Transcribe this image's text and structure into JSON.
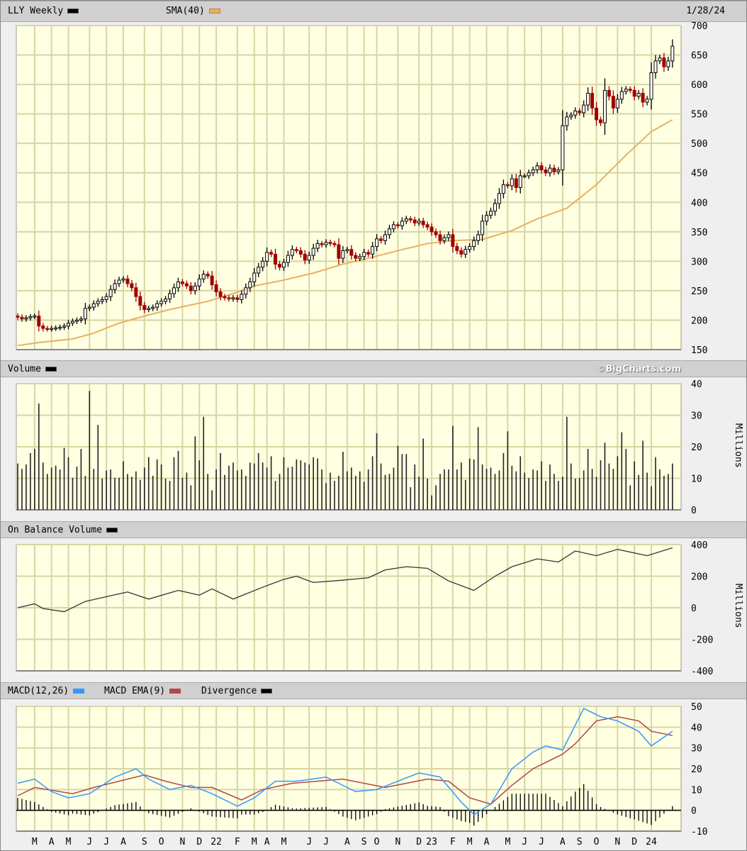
{
  "header": {
    "symbol_label": "LLY Weekly",
    "sma_label": "SMA(40)",
    "date": "1/28/24"
  },
  "volume_header": {
    "label": "Volume",
    "brand": "©BigCharts.com"
  },
  "obv_header": {
    "label": "On Balance Volume"
  },
  "macd_header": {
    "macd_label": "MACD(12,26)",
    "ema_label": "MACD EMA(9)",
    "div_label": "Divergence"
  },
  "units": {
    "volume": "Millions",
    "obv": "Millions"
  },
  "colors": {
    "up": "#000000",
    "down": "#a00000",
    "sma": "#e8b060",
    "macd": "#3399ff",
    "signal": "#b04848",
    "divergence": "#000000",
    "plot_bg": "#ffffe2",
    "grid": "#d6d6a4"
  },
  "chart_data": [
    {
      "type": "candlestick",
      "title": "LLY Weekly",
      "ylim": [
        150,
        700
      ],
      "yticks": [
        150,
        200,
        250,
        300,
        350,
        400,
        450,
        500,
        550,
        600,
        650,
        700
      ],
      "x_ticks": [
        {
          "label": "M",
          "week": 4
        },
        {
          "label": "A",
          "week": 8
        },
        {
          "label": "M",
          "week": 12
        },
        {
          "label": "J",
          "week": 17
        },
        {
          "label": "J",
          "week": 21
        },
        {
          "label": "A",
          "week": 25
        },
        {
          "label": "S",
          "week": 30
        },
        {
          "label": "O",
          "week": 34
        },
        {
          "label": "N",
          "week": 39
        },
        {
          "label": "D",
          "week": 43
        },
        {
          "label": "22",
          "week": 47
        },
        {
          "label": "F",
          "week": 52
        },
        {
          "label": "M",
          "week": 56
        },
        {
          "label": "A",
          "week": 59
        },
        {
          "label": "M",
          "week": 63
        },
        {
          "label": "J",
          "week": 69
        },
        {
          "label": "J",
          "week": 73
        },
        {
          "label": "A",
          "week": 78
        },
        {
          "label": "S",
          "week": 82
        },
        {
          "label": "O",
          "week": 85
        },
        {
          "label": "N",
          "week": 90
        },
        {
          "label": "D",
          "week": 95
        },
        {
          "label": "23",
          "week": 98
        },
        {
          "label": "F",
          "week": 103
        },
        {
          "label": "M",
          "week": 107
        },
        {
          "label": "A",
          "week": 111
        },
        {
          "label": "M",
          "week": 116
        },
        {
          "label": "J",
          "week": 120
        },
        {
          "label": "J",
          "week": 124
        },
        {
          "label": "A",
          "week": 129
        },
        {
          "label": "S",
          "week": 133
        },
        {
          "label": "O",
          "week": 137
        },
        {
          "label": "N",
          "week": 142
        },
        {
          "label": "D",
          "week": 146
        },
        {
          "label": "24",
          "week": 150
        }
      ],
      "close": [
        205,
        202,
        204,
        206,
        207,
        190,
        186,
        185,
        186,
        187,
        188,
        190,
        195,
        198,
        200,
        202,
        220,
        222,
        228,
        232,
        235,
        240,
        252,
        262,
        268,
        270,
        262,
        255,
        240,
        225,
        218,
        220,
        222,
        228,
        232,
        236,
        245,
        255,
        265,
        262,
        258,
        250,
        258,
        270,
        278,
        275,
        260,
        248,
        240,
        238,
        236,
        238,
        235,
        244,
        255,
        265,
        280,
        290,
        300,
        315,
        312,
        295,
        290,
        298,
        310,
        320,
        318,
        312,
        302,
        310,
        322,
        330,
        328,
        332,
        330,
        328,
        305,
        318,
        320,
        310,
        305,
        308,
        315,
        312,
        325,
        338,
        335,
        345,
        355,
        362,
        360,
        368,
        372,
        370,
        365,
        368,
        362,
        358,
        350,
        345,
        335,
        340,
        345,
        325,
        318,
        312,
        320,
        325,
        335,
        345,
        368,
        378,
        385,
        398,
        415,
        430,
        428,
        440,
        425,
        445,
        445,
        450,
        455,
        462,
        455,
        450,
        458,
        452,
        455,
        530,
        545,
        548,
        555,
        552,
        565,
        585,
        560,
        540,
        535,
        590,
        580,
        560,
        575,
        588,
        592,
        590,
        580,
        585,
        570,
        575,
        620,
        640,
        645,
        630,
        640,
        665
      ],
      "sma40": [
        {
          "week": 0,
          "value": 157
        },
        {
          "week": 6,
          "value": 163
        },
        {
          "week": 13,
          "value": 168
        },
        {
          "week": 18,
          "value": 178
        },
        {
          "week": 24,
          "value": 195
        },
        {
          "week": 30,
          "value": 207
        },
        {
          "week": 36,
          "value": 218
        },
        {
          "week": 45,
          "value": 232
        },
        {
          "week": 51,
          "value": 245
        },
        {
          "week": 56,
          "value": 258
        },
        {
          "week": 63,
          "value": 268
        },
        {
          "week": 70,
          "value": 280
        },
        {
          "week": 77,
          "value": 295
        },
        {
          "week": 83,
          "value": 305
        },
        {
          "week": 90,
          "value": 318
        },
        {
          "week": 97,
          "value": 330
        },
        {
          "week": 103,
          "value": 335
        },
        {
          "week": 110,
          "value": 337
        },
        {
          "week": 117,
          "value": 352
        },
        {
          "week": 123,
          "value": 372
        },
        {
          "week": 130,
          "value": 390
        },
        {
          "week": 137,
          "value": 430
        },
        {
          "week": 144,
          "value": 480
        },
        {
          "week": 150,
          "value": 520
        },
        {
          "week": 155,
          "value": 540
        }
      ]
    },
    {
      "type": "bar",
      "title": "Volume",
      "ylabel": "Millions",
      "ylim": [
        0,
        40
      ],
      "yticks": [
        0,
        10,
        20,
        30,
        40
      ],
      "values": [
        14.7,
        13,
        14.4,
        18,
        19.3,
        33.7,
        15,
        11.4,
        13.4,
        14,
        12.8,
        19.6,
        16.7,
        10.2,
        13.7,
        19.3,
        10.8,
        37.7,
        13,
        26.9,
        9.9,
        12.5,
        12.8,
        10.2,
        10.2,
        15.4,
        11.4,
        10.5,
        12.2,
        9.5,
        13.4,
        16.7,
        10.8,
        16,
        14.4,
        9.9,
        9.2,
        16.7,
        18.7,
        10.2,
        11.8,
        7.8,
        23.3,
        15.7,
        29.5,
        11.4,
        6.2,
        12.8,
        18,
        11.1,
        14,
        15,
        12.5,
        12.8,
        10.8,
        15,
        14.7,
        18,
        15,
        13.4,
        17,
        9.2,
        11.4,
        16.7,
        13.4,
        13.7,
        16,
        15.7,
        15,
        14.4,
        16.7,
        16.3,
        12.8,
        8.5,
        11.8,
        9.2,
        10.8,
        18.4,
        12.2,
        13.4,
        10.8,
        12.2,
        8.9,
        12.8,
        17,
        24.3,
        14.7,
        11.1,
        11.4,
        13.4,
        20.3,
        17.7,
        17.7,
        7.2,
        14.4,
        10.5,
        22.6,
        9.9,
        4.6,
        7.8,
        11.4,
        12.8,
        12.8,
        26.6,
        12.8,
        15,
        9.5,
        16.3,
        16,
        26.2,
        14.4,
        13,
        13.4,
        11.4,
        12.5,
        18,
        24.9,
        14,
        12.2,
        17,
        11.8,
        10.1,
        12.8,
        12.5,
        15.4,
        9.2,
        14.4,
        11.4,
        9.2,
        10.5,
        29.5,
        14.7,
        9.9,
        10.1,
        12.5,
        19.3,
        13,
        10.5,
        15.7,
        21.3,
        14.7,
        13,
        17,
        24.6,
        19.3,
        7.8,
        15.4,
        11.1,
        21.9,
        11.8,
        7.5,
        16.7,
        12.8,
        10.8,
        11.4,
        14.7
      ]
    },
    {
      "type": "line",
      "title": "On Balance Volume",
      "ylabel": "Millions",
      "ylim": [
        -400,
        400
      ],
      "yticks": [
        -400,
        -200,
        0,
        200,
        400
      ],
      "points": [
        {
          "week": 0,
          "value": 0
        },
        {
          "week": 4,
          "value": 25
        },
        {
          "week": 6,
          "value": -5
        },
        {
          "week": 11,
          "value": -25
        },
        {
          "week": 16,
          "value": 40
        },
        {
          "week": 21,
          "value": 70
        },
        {
          "week": 26,
          "value": 100
        },
        {
          "week": 31,
          "value": 55
        },
        {
          "week": 38,
          "value": 110
        },
        {
          "week": 43,
          "value": 80
        },
        {
          "week": 46,
          "value": 120
        },
        {
          "week": 51,
          "value": 55
        },
        {
          "week": 58,
          "value": 130
        },
        {
          "week": 63,
          "value": 180
        },
        {
          "week": 66,
          "value": 200
        },
        {
          "week": 70,
          "value": 160
        },
        {
          "week": 77,
          "value": 175
        },
        {
          "week": 83,
          "value": 190
        },
        {
          "week": 87,
          "value": 240
        },
        {
          "week": 92,
          "value": 260
        },
        {
          "week": 97,
          "value": 250
        },
        {
          "week": 102,
          "value": 170
        },
        {
          "week": 108,
          "value": 110
        },
        {
          "week": 113,
          "value": 200
        },
        {
          "week": 117,
          "value": 260
        },
        {
          "week": 123,
          "value": 310
        },
        {
          "week": 128,
          "value": 290
        },
        {
          "week": 132,
          "value": 360
        },
        {
          "week": 137,
          "value": 330
        },
        {
          "week": 142,
          "value": 370
        },
        {
          "week": 149,
          "value": 330
        },
        {
          "week": 155,
          "value": 380
        }
      ]
    },
    {
      "type": "line",
      "title": "MACD(12,26)",
      "ylim": [
        -10,
        50
      ],
      "yticks": [
        -10,
        0,
        10,
        20,
        30,
        40,
        50
      ],
      "series": [
        {
          "name": "MACD(12,26)",
          "points": [
            {
              "week": 0,
              "value": 13
            },
            {
              "week": 4,
              "value": 15
            },
            {
              "week": 8,
              "value": 9
            },
            {
              "week": 12,
              "value": 6
            },
            {
              "week": 17,
              "value": 8
            },
            {
              "week": 23,
              "value": 16
            },
            {
              "week": 28,
              "value": 20
            },
            {
              "week": 31,
              "value": 15
            },
            {
              "week": 36,
              "value": 10
            },
            {
              "week": 41,
              "value": 12
            },
            {
              "week": 46,
              "value": 8
            },
            {
              "week": 52,
              "value": 2
            },
            {
              "week": 56,
              "value": 6
            },
            {
              "week": 61,
              "value": 14
            },
            {
              "week": 66,
              "value": 14
            },
            {
              "week": 73,
              "value": 16
            },
            {
              "week": 80,
              "value": 9
            },
            {
              "week": 85,
              "value": 10
            },
            {
              "week": 90,
              "value": 14
            },
            {
              "week": 95,
              "value": 18
            },
            {
              "week": 100,
              "value": 16
            },
            {
              "week": 105,
              "value": 4
            },
            {
              "week": 108,
              "value": -2
            },
            {
              "week": 112,
              "value": 3
            },
            {
              "week": 117,
              "value": 20
            },
            {
              "week": 122,
              "value": 28
            },
            {
              "week": 125,
              "value": 31
            },
            {
              "week": 129,
              "value": 29
            },
            {
              "week": 134,
              "value": 49
            },
            {
              "week": 138,
              "value": 45
            },
            {
              "week": 142,
              "value": 43
            },
            {
              "week": 147,
              "value": 38
            },
            {
              "week": 150,
              "value": 31
            },
            {
              "week": 155,
              "value": 38
            }
          ]
        },
        {
          "name": "MACD EMA(9)",
          "points": [
            {
              "week": 0,
              "value": 7
            },
            {
              "week": 4,
              "value": 11
            },
            {
              "week": 13,
              "value": 8
            },
            {
              "week": 18,
              "value": 11
            },
            {
              "week": 30,
              "value": 17
            },
            {
              "week": 35,
              "value": 14
            },
            {
              "week": 41,
              "value": 11
            },
            {
              "week": 46,
              "value": 11
            },
            {
              "week": 53,
              "value": 5
            },
            {
              "week": 58,
              "value": 10
            },
            {
              "week": 65,
              "value": 13
            },
            {
              "week": 77,
              "value": 15
            },
            {
              "week": 87,
              "value": 11
            },
            {
              "week": 97,
              "value": 15
            },
            {
              "week": 102,
              "value": 14
            },
            {
              "week": 107,
              "value": 6
            },
            {
              "week": 112,
              "value": 3
            },
            {
              "week": 117,
              "value": 12
            },
            {
              "week": 122,
              "value": 20
            },
            {
              "week": 129,
              "value": 27
            },
            {
              "week": 132,
              "value": 32
            },
            {
              "week": 137,
              "value": 43
            },
            {
              "week": 142,
              "value": 45
            },
            {
              "week": 147,
              "value": 43
            },
            {
              "week": 150,
              "value": 38
            },
            {
              "week": 155,
              "value": 36
            }
          ]
        },
        {
          "name": "Divergence",
          "derived_from": "MACD(12,26) minus MACD EMA(9)"
        }
      ]
    }
  ]
}
